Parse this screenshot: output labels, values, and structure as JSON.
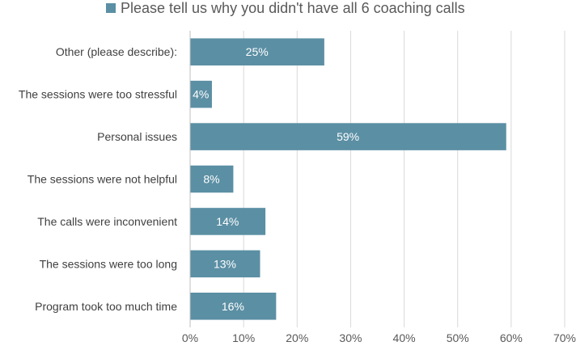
{
  "chart_data": {
    "type": "bar",
    "orientation": "horizontal",
    "title": "",
    "legend": {
      "position": "top",
      "label": "Please tell us why you didn't have all 6 coaching calls"
    },
    "categories": [
      "Other (please describe):",
      "The sessions were too stressful",
      "Personal issues",
      "The sessions were not helpful",
      "The calls were inconvenient",
      "The sessions were too long",
      "Program took too much time"
    ],
    "series": [
      {
        "name": "Please tell us why you didn't have all 6 coaching calls",
        "values": [
          25,
          4,
          59,
          8,
          14,
          13,
          16
        ],
        "data_labels": [
          "25%",
          "4%",
          "59%",
          "8%",
          "14%",
          "13%",
          "16%"
        ],
        "color": "#5B8FA4"
      }
    ],
    "xlim": [
      0,
      70
    ],
    "xticks": [
      0,
      10,
      20,
      30,
      40,
      50,
      60,
      70
    ],
    "xtick_labels": [
      "0%",
      "10%",
      "20%",
      "30%",
      "40%",
      "50%",
      "60%",
      "70%"
    ],
    "xlabel": "",
    "ylabel": "",
    "grid": true,
    "colors": {
      "bar": "#5B8FA4",
      "grid": "#D9D9D9",
      "axis": "#BFBFBF"
    }
  }
}
